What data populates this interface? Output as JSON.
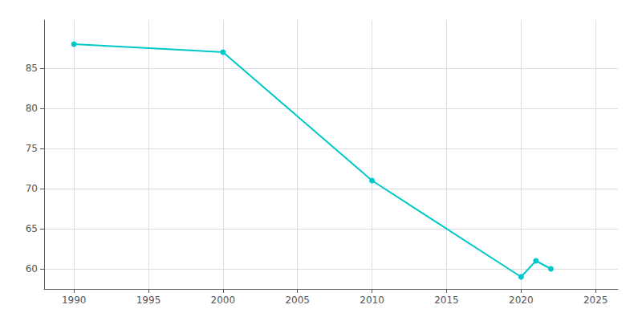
{
  "chart_data": {
    "type": "line",
    "x": [
      1990,
      2000,
      2010,
      2020,
      2021,
      2022
    ],
    "values": [
      88,
      87,
      71,
      59,
      61,
      60
    ],
    "color": "#00C8C8",
    "marker": "circle",
    "xlim": [
      1988,
      2026.5
    ],
    "xticks": [
      1990,
      1995,
      2000,
      2005,
      2010,
      2015,
      2020,
      2025
    ],
    "ylim": [
      57.5,
      91
    ],
    "yticks": [
      60,
      65,
      70,
      75,
      80,
      85
    ],
    "grid": true
  }
}
